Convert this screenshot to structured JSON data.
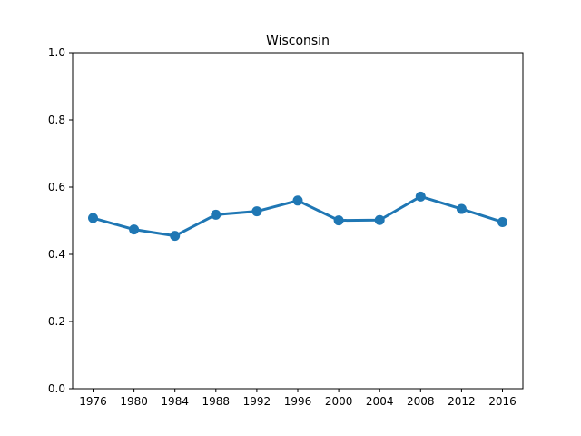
{
  "chart_data": {
    "type": "line",
    "title": "Wisconsin",
    "xlabel": "",
    "ylabel": "",
    "categories": [
      "1976",
      "1980",
      "1984",
      "1988",
      "1992",
      "1996",
      "2000",
      "2004",
      "2008",
      "2012",
      "2016"
    ],
    "series": [
      {
        "values": [
          0.508,
          0.474,
          0.455,
          0.518,
          0.528,
          0.56,
          0.501,
          0.502,
          0.572,
          0.535,
          0.496
        ],
        "color": "#1f77b4"
      }
    ],
    "ylim": [
      0,
      1
    ],
    "yticks": [
      "0.0",
      "0.2",
      "0.4",
      "0.6",
      "0.8",
      "1.0"
    ],
    "grid": false,
    "legend": "none"
  }
}
